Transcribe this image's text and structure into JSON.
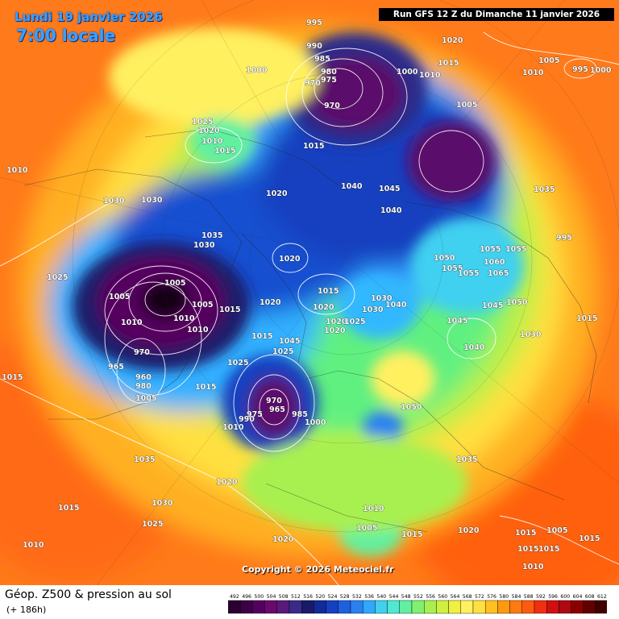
{
  "header": {
    "date": "Lundi 19 janvier 2026",
    "time": "7:00 locale",
    "run": "Run GFS 12 Z du Dimanche 11 janvier 2026"
  },
  "copyright": "Copyright © 2026 Meteociel.fr",
  "footer": {
    "title": "Géop. Z500 & pression au sol",
    "subtitle": "(+ 186h)"
  },
  "legend": {
    "ticks": [
      "492",
      "496",
      "500",
      "504",
      "508",
      "512",
      "516",
      "520",
      "524",
      "528",
      "532",
      "536",
      "540",
      "544",
      "548",
      "552",
      "556",
      "560",
      "564",
      "568",
      "572",
      "576",
      "580",
      "584",
      "588",
      "592",
      "596",
      "600",
      "604",
      "608",
      "612"
    ],
    "colors": [
      "#2a0030",
      "#3c0045",
      "#55005e",
      "#6a0a6f",
      "#5a1a7a",
      "#3a2a8a",
      "#1a1a6a",
      "#122a9a",
      "#1540c0",
      "#1e60e0",
      "#2a80f0",
      "#30a8ff",
      "#40d0f0",
      "#50e8d0",
      "#60f0a0",
      "#80f070",
      "#a8f050",
      "#d0f040",
      "#f0f040",
      "#fff060",
      "#ffe040",
      "#ffc020",
      "#ff9a10",
      "#ff7a10",
      "#ff5a10",
      "#f03010",
      "#d01010",
      "#b00810",
      "#8a0000",
      "#600000",
      "#400000"
    ]
  },
  "pressure_labels": [
    "995",
    "990",
    "985",
    "980",
    "975",
    "970",
    "1000",
    "1005",
    "1010",
    "1015",
    "1020",
    "1025",
    "1030",
    "1035",
    "1040",
    "1045",
    "1050",
    "1055",
    "1060",
    "1065",
    "965",
    "960"
  ]
}
